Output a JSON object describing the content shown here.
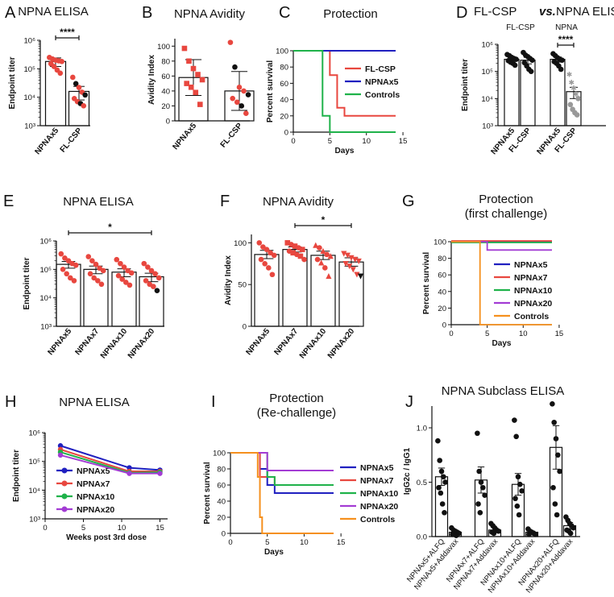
{
  "colors": {
    "red": "#e8473f",
    "pink": "#f26d6d",
    "black": "#111111",
    "blue": "#2020c0",
    "green": "#1fb24a",
    "purple": "#a33cd4",
    "orange": "#f5901e",
    "gray": "#999999"
  },
  "chart_data": [
    {
      "id": "A",
      "panel_label": "A",
      "type": "bar",
      "title": "NPNA ELISA",
      "ylabel": "Endpoint titer",
      "yscale": "log",
      "ylim": [
        1000,
        1000000
      ],
      "ytick_labels": [
        "10³",
        "10⁴",
        "10⁵",
        "10⁶"
      ],
      "categories": [
        "NPNAx5",
        "FL-CSP"
      ],
      "values": [
        180000,
        16000
      ],
      "errors": [
        60000,
        8000
      ],
      "points": [
        [
          250000,
          220000,
          200000,
          190000,
          180000,
          150000,
          120000,
          90000,
          70000
        ],
        [
          50000,
          30000,
          22000,
          15000,
          12000,
          9000,
          7000,
          6000,
          5000
        ]
      ],
      "point_colors": [
        "red",
        "mix"
      ],
      "significance": {
        "pair": [
          0,
          1
        ],
        "label": "****"
      }
    },
    {
      "id": "B",
      "panel_label": "B",
      "type": "bar",
      "title": "NPNA Avidity",
      "ylabel": "Avidity Index",
      "ylim": [
        0,
        110
      ],
      "ytick_labels": [
        "0",
        "20",
        "40",
        "60",
        "80",
        "100"
      ],
      "categories": [
        "NPNAx5",
        "FL-CSP"
      ],
      "values": [
        58,
        40
      ],
      "errors": [
        24,
        26
      ],
      "points": [
        [
          97,
          80,
          70,
          62,
          55,
          50,
          45,
          38,
          22
        ],
        [
          105,
          72,
          45,
          40,
          35,
          30,
          25,
          20,
          10
        ]
      ],
      "point_colors": [
        "red",
        "mix"
      ]
    },
    {
      "id": "C",
      "panel_label": "C",
      "type": "line",
      "title": "Protection",
      "xlabel": "Days",
      "ylabel": "Percent survival",
      "xlim": [
        0,
        14
      ],
      "ylim": [
        0,
        100
      ],
      "xtick_labels": [
        "0",
        "5",
        "10",
        "15"
      ],
      "ytick_labels": [
        "0",
        "20",
        "40",
        "60",
        "80",
        "100"
      ],
      "series": [
        {
          "name": "FL-CSP",
          "color": "red",
          "x": [
            0,
            5,
            5,
            6,
            6,
            7,
            7,
            14
          ],
          "y": [
            100,
            100,
            70,
            70,
            30,
            30,
            20,
            20
          ]
        },
        {
          "name": "NPNAx5",
          "color": "blue",
          "x": [
            0,
            14
          ],
          "y": [
            100,
            100
          ]
        },
        {
          "name": "Controls",
          "color": "green",
          "x": [
            0,
            4,
            4,
            5,
            5,
            14
          ],
          "y": [
            100,
            100,
            20,
            20,
            0,
            0
          ]
        }
      ]
    },
    {
      "id": "D",
      "panel_label": "D",
      "type": "bar",
      "title_parts": [
        "FL-CSP ",
        "vs.",
        " NPNA ELISA"
      ],
      "group_labels": [
        "FL-CSP",
        "NPNA"
      ],
      "ylabel": "Endpoint titer",
      "yscale": "log",
      "ylim": [
        1000,
        1000000
      ],
      "ytick_labels": [
        "10³",
        "10⁴",
        "10⁵",
        "10⁶"
      ],
      "categories": [
        "NPNAx5",
        "FL-CSP",
        "NPNAx5",
        "FL-CSP"
      ],
      "values": [
        280000,
        260000,
        280000,
        18000
      ],
      "errors": [
        60000,
        70000,
        60000,
        8000
      ],
      "points": [
        [
          420000,
          380000,
          330000,
          300000,
          280000,
          250000,
          220000,
          200000,
          170000
        ],
        [
          500000,
          400000,
          350000,
          300000,
          260000,
          210000,
          160000,
          120000,
          100000
        ],
        [
          450000,
          380000,
          320000,
          280000,
          260000,
          230000,
          200000,
          160000,
          120000
        ],
        [
          80000,
          40000,
          25000,
          15000,
          10000,
          6000,
          4000,
          3000,
          2500
        ]
      ],
      "point_colors": [
        "black",
        "black",
        "black",
        "gray"
      ],
      "significance": {
        "pair": [
          2,
          3
        ],
        "label": "****"
      }
    },
    {
      "id": "E",
      "panel_label": "E",
      "type": "bar",
      "title": "NPNA ELISA",
      "ylabel": "Endpoint titer",
      "yscale": "log",
      "ylim": [
        1000,
        1000000
      ],
      "ytick_labels": [
        "10³",
        "10⁴",
        "10⁵",
        "10⁶"
      ],
      "categories": [
        "NPNAx5",
        "NPNAx7",
        "NPNAx10",
        "NPNAx20"
      ],
      "values": [
        150000,
        100000,
        80000,
        55000
      ],
      "errors": [
        40000,
        30000,
        25000,
        18000
      ],
      "points": [
        [
          350000,
          250000,
          200000,
          160000,
          140000,
          100000,
          70000,
          50000,
          40000
        ],
        [
          280000,
          200000,
          150000,
          110000,
          90000,
          70000,
          50000,
          40000,
          30000
        ],
        [
          220000,
          160000,
          120000,
          90000,
          75000,
          60000,
          45000,
          35000,
          28000
        ],
        [
          160000,
          120000,
          90000,
          70000,
          50000,
          40000,
          30000,
          25000,
          18000
        ]
      ],
      "point_colors": [
        "red",
        "red",
        "red",
        "red"
      ],
      "significance": {
        "pair": [
          0,
          3
        ],
        "label": "*"
      }
    },
    {
      "id": "F",
      "panel_label": "F",
      "type": "bar",
      "title": "NPNA Avidity",
      "ylabel": "Avidity Index",
      "ylim": [
        0,
        110
      ],
      "ytick_labels": [
        "0",
        "50",
        "100"
      ],
      "categories": [
        "NPNAx5",
        "NPNAx7",
        "NPNAx10",
        "NPNAx20"
      ],
      "values": [
        86,
        92,
        85,
        77
      ],
      "errors": [
        5,
        3,
        5,
        5
      ],
      "points": [
        [
          100,
          95,
          92,
          88,
          85,
          80,
          75,
          70,
          62
        ],
        [
          100,
          98,
          96,
          94,
          92,
          90,
          88,
          86,
          84,
          80
        ],
        [
          97,
          94,
          90,
          86,
          84,
          80,
          76,
          70,
          60
        ],
        [
          87,
          85,
          82,
          80,
          78,
          75,
          72,
          68,
          62,
          60
        ]
      ],
      "point_colors": [
        "red",
        "red",
        "red",
        "red"
      ],
      "significance": {
        "pair": [
          1,
          3
        ],
        "label": "*"
      }
    },
    {
      "id": "G",
      "panel_label": "G",
      "type": "line",
      "title_lines": [
        "Protection",
        "(first challenge)"
      ],
      "xlabel": "Days",
      "ylabel": "Percent survival",
      "xlim": [
        0,
        14
      ],
      "ylim": [
        0,
        100
      ],
      "xtick_labels": [
        "0",
        "5",
        "10",
        "15"
      ],
      "ytick_labels": [
        "0",
        "20",
        "40",
        "60",
        "80",
        "100"
      ],
      "series": [
        {
          "name": "NPNAx5",
          "color": "blue",
          "x": [
            0,
            14
          ],
          "y": [
            100,
            100
          ]
        },
        {
          "name": "NPNAx7",
          "color": "red",
          "x": [
            0,
            14
          ],
          "y": [
            101,
            101
          ]
        },
        {
          "name": "NPNAx10",
          "color": "green",
          "x": [
            0,
            14
          ],
          "y": [
            99,
            99
          ]
        },
        {
          "name": "NPNAx20",
          "color": "purple",
          "x": [
            0,
            5,
            5,
            14
          ],
          "y": [
            100,
            100,
            90,
            90
          ]
        },
        {
          "name": "Controls",
          "color": "orange",
          "x": [
            0,
            4,
            4,
            14
          ],
          "y": [
            100,
            100,
            0,
            0
          ]
        }
      ]
    },
    {
      "id": "H",
      "panel_label": "H",
      "type": "line",
      "title": "NPNA ELISA",
      "xlabel": "Weeks post 3rd dose",
      "ylabel": "Endpoint titer",
      "yscale": "log",
      "xlim": [
        0,
        16
      ],
      "ylim": [
        1000,
        1000000
      ],
      "xtick_labels": [
        "0",
        "5",
        "10",
        "15"
      ],
      "ytick_labels": [
        "10³",
        "10⁴",
        "10⁵",
        "10⁶"
      ],
      "series": [
        {
          "name": "NPNAx5",
          "color": "blue",
          "x": [
            2,
            11,
            15
          ],
          "y": [
            350000,
            60000,
            50000
          ]
        },
        {
          "name": "NPNAx7",
          "color": "red",
          "x": [
            2,
            11,
            15
          ],
          "y": [
            260000,
            45000,
            45000
          ]
        },
        {
          "name": "NPNAx10",
          "color": "green",
          "x": [
            2,
            11,
            15
          ],
          "y": [
            210000,
            40000,
            42000
          ]
        },
        {
          "name": "NPNAx20",
          "color": "purple",
          "x": [
            2,
            11,
            15
          ],
          "y": [
            165000,
            38000,
            38000
          ]
        }
      ]
    },
    {
      "id": "I",
      "panel_label": "I",
      "type": "line",
      "title_lines": [
        "Protection",
        "(Re-challenge)"
      ],
      "xlabel": "Days",
      "ylabel": "Percent survival",
      "xlim": [
        0,
        14
      ],
      "ylim": [
        0,
        100
      ],
      "xtick_labels": [
        "0",
        "5",
        "10",
        "15"
      ],
      "ytick_labels": [
        "0",
        "20",
        "40",
        "60",
        "80",
        "100"
      ],
      "series": [
        {
          "name": "NPNAx5",
          "color": "blue",
          "x": [
            0,
            4,
            4,
            5,
            5,
            6,
            6,
            14
          ],
          "y": [
            100,
            100,
            80,
            80,
            60,
            60,
            50,
            50
          ]
        },
        {
          "name": "NPNAx7",
          "color": "red",
          "x": [
            0,
            4,
            4,
            5,
            5,
            6,
            6,
            14
          ],
          "y": [
            100,
            100,
            70,
            70,
            70,
            70,
            60,
            60
          ]
        },
        {
          "name": "NPNAx10",
          "color": "green",
          "x": [
            0,
            5,
            5,
            6,
            6,
            14
          ],
          "y": [
            100,
            100,
            70,
            70,
            60,
            60
          ]
        },
        {
          "name": "NPNAx20",
          "color": "purple",
          "x": [
            0,
            5,
            5,
            14
          ],
          "y": [
            100,
            100,
            78,
            78
          ]
        },
        {
          "name": "Controls",
          "color": "orange",
          "x": [
            0,
            3.7,
            3.7,
            4,
            4,
            4.3,
            4.3,
            14
          ],
          "y": [
            100,
            100,
            70,
            70,
            20,
            20,
            0,
            0
          ]
        }
      ]
    },
    {
      "id": "J",
      "panel_label": "J",
      "type": "bar",
      "title": "NPNA Subclass ELISA",
      "ylabel": "IgG2c / IgG1",
      "ylim": [
        0,
        1.2
      ],
      "ytick_labels": [
        "0.0",
        "0.5",
        "1.0"
      ],
      "categories": [
        "NPNAx5+ALFQ",
        "NPNAx5+Addavax",
        "NPNAx7+ALFQ",
        "NPNAx7+Addavax",
        "NPNAx10+ALFQ",
        "NPNAx10+Addavax",
        "NPNAx20+ALFQ",
        "NPNAx20+Addavax"
      ],
      "values": [
        0.55,
        0.04,
        0.52,
        0.06,
        0.48,
        0.04,
        0.82,
        0.1
      ],
      "errors": [
        0.08,
        0.01,
        0.12,
        0.02,
        0.1,
        0.01,
        0.2,
        0.03
      ],
      "points": [
        [
          0.88,
          0.7,
          0.6,
          0.55,
          0.5,
          0.45,
          0.4,
          0.3,
          0.22
        ],
        [
          0.08,
          0.06,
          0.05,
          0.04,
          0.03,
          0.02,
          0.02,
          0.01
        ],
        [
          0.95,
          0.6,
          0.5,
          0.45,
          0.38,
          0.3,
          0.22
        ],
        [
          0.12,
          0.1,
          0.08,
          0.06,
          0.05,
          0.04,
          0.03
        ],
        [
          1.07,
          0.92,
          0.55,
          0.48,
          0.42,
          0.35,
          0.28,
          0.2
        ],
        [
          0.07,
          0.05,
          0.04,
          0.03,
          0.02,
          0.02
        ],
        [
          1.22,
          1.05,
          0.9,
          0.75,
          0.6,
          0.45,
          0.3,
          0.2
        ],
        [
          0.18,
          0.15,
          0.12,
          0.1,
          0.08,
          0.06,
          0.05,
          0.03
        ]
      ],
      "point_colors": [
        "black",
        "black",
        "black",
        "black",
        "black",
        "black",
        "black",
        "black"
      ]
    }
  ]
}
